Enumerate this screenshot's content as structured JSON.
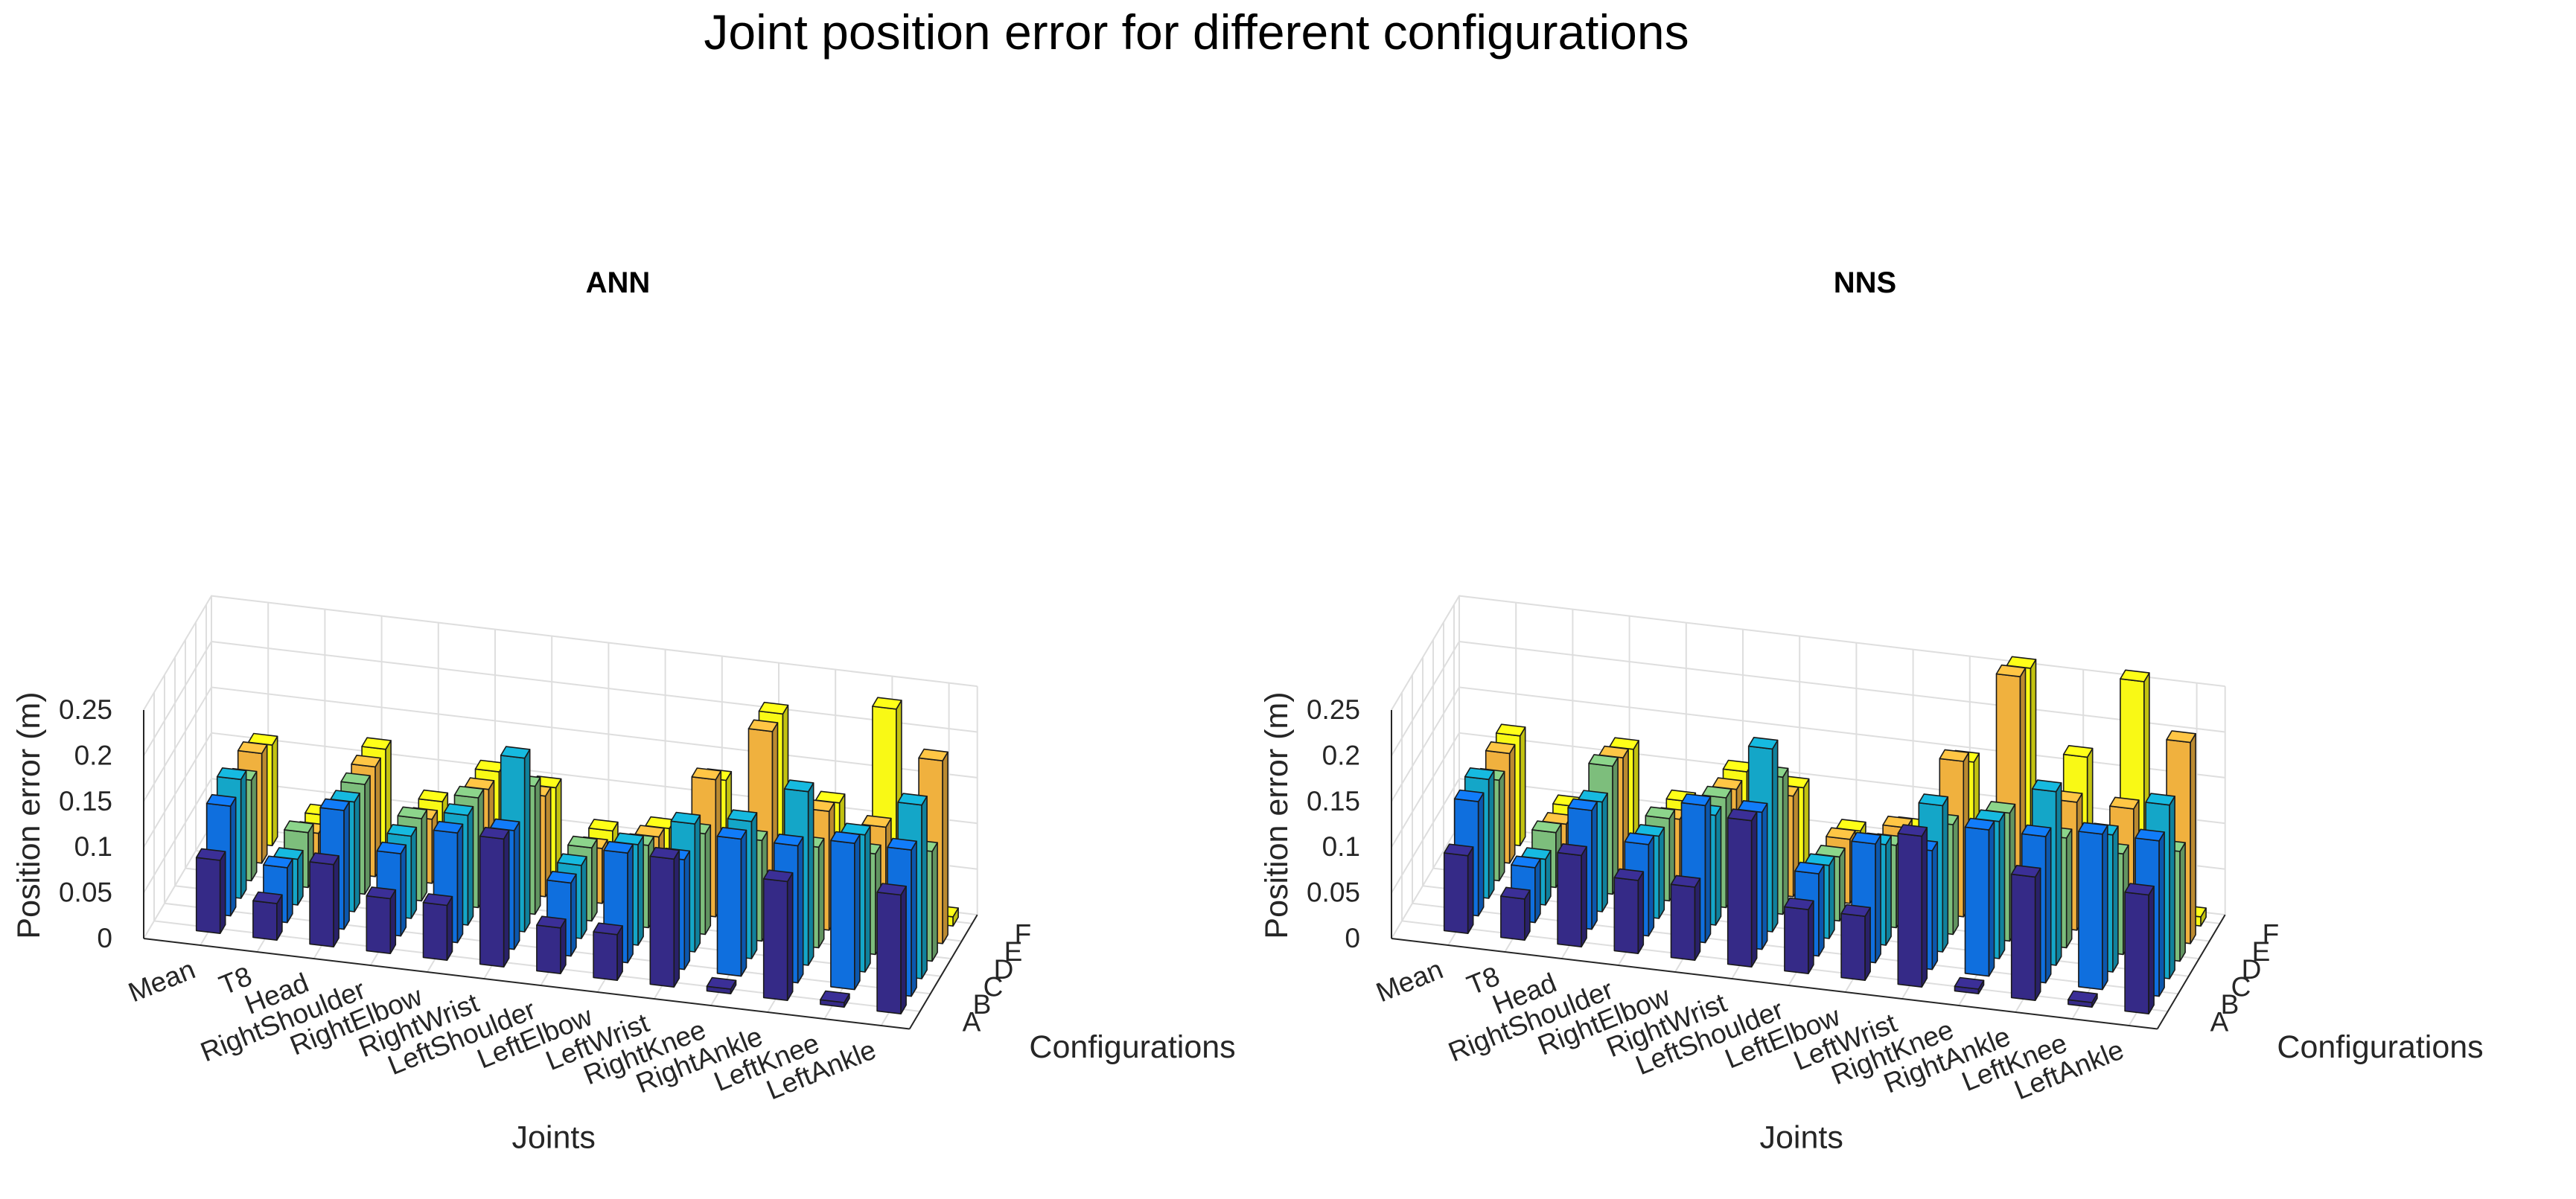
{
  "title": "Joint position error for different configurations",
  "chart_data": [
    {
      "type": "bar3",
      "title": "ANN",
      "xlabel": "Joints",
      "ylabel": "Configurations",
      "zlabel": "Position error (m)",
      "zlim": [
        0,
        0.25
      ],
      "zticks": [
        "0",
        "0.05",
        "0.1",
        "0.15",
        "0.2",
        "0.25"
      ],
      "categories": [
        "Mean",
        "T8",
        "Head",
        "RightShoulder",
        "RightElbow",
        "RightWrist",
        "LeftShoulder",
        "LeftElbow",
        "LeftWrist",
        "RightKnee",
        "RightAnkle",
        "LeftKnee",
        "LeftAnkle"
      ],
      "series": [
        {
          "name": "A",
          "color": "#352a87",
          "values": [
            0.08,
            0.04,
            0.09,
            0.06,
            0.06,
            0.14,
            0.05,
            0.05,
            0.14,
            0.005,
            0.13,
            0.005,
            0.13
          ]
        },
        {
          "name": "B",
          "color": "#0f6fde",
          "values": [
            0.12,
            0.06,
            0.13,
            0.09,
            0.12,
            0.13,
            0.08,
            0.12,
            0.12,
            0.15,
            0.15,
            0.16,
            0.16
          ]
        },
        {
          "name": "C",
          "color": "#14a6c8",
          "values": [
            0.13,
            0.05,
            0.12,
            0.09,
            0.12,
            0.19,
            0.08,
            0.11,
            0.14,
            0.15,
            0.19,
            0.15,
            0.19
          ]
        },
        {
          "name": "D",
          "color": "#7dbe7c",
          "values": [
            0.11,
            0.06,
            0.12,
            0.09,
            0.12,
            0.14,
            0.08,
            0.09,
            0.11,
            0.11,
            0.11,
            0.11,
            0.12
          ]
        },
        {
          "name": "E",
          "color": "#f0b13e",
          "values": [
            0.12,
            0.04,
            0.12,
            0.07,
            0.11,
            0.11,
            0.06,
            0.08,
            0.15,
            0.21,
            0.13,
            0.12,
            0.2
          ]
        },
        {
          "name": "F",
          "color": "#f9f915",
          "values": [
            0.11,
            0.04,
            0.12,
            0.07,
            0.11,
            0.1,
            0.06,
            0.07,
            0.13,
            0.21,
            0.12,
            0.23,
            0.01
          ]
        }
      ]
    },
    {
      "type": "bar3",
      "title": "NNS",
      "xlabel": "Joints",
      "ylabel": "Configurations",
      "zlabel": "Position error (m)",
      "zlim": [
        0,
        0.25
      ],
      "zticks": [
        "0",
        "0.05",
        "0.1",
        "0.15",
        "0.2",
        "0.25"
      ],
      "categories": [
        "Mean",
        "T8",
        "Head",
        "RightShoulder",
        "RightElbow",
        "RightWrist",
        "LeftShoulder",
        "LeftElbow",
        "LeftWrist",
        "RightKnee",
        "RightAnkle",
        "LeftKnee",
        "LeftAnkle"
      ],
      "series": [
        {
          "name": "A",
          "color": "#352a87",
          "values": [
            0.085,
            0.045,
            0.1,
            0.08,
            0.08,
            0.16,
            0.07,
            0.07,
            0.165,
            0.005,
            0.135,
            0.005,
            0.13
          ]
        },
        {
          "name": "B",
          "color": "#0f6fde",
          "values": [
            0.125,
            0.06,
            0.13,
            0.1,
            0.15,
            0.15,
            0.09,
            0.13,
            0.13,
            0.16,
            0.16,
            0.17,
            0.17
          ]
        },
        {
          "name": "C",
          "color": "#14a6c8",
          "values": [
            0.13,
            0.05,
            0.12,
            0.09,
            0.12,
            0.2,
            0.08,
            0.11,
            0.16,
            0.15,
            0.19,
            0.15,
            0.19
          ]
        },
        {
          "name": "D",
          "color": "#7dbe7c",
          "values": [
            0.11,
            0.06,
            0.14,
            0.09,
            0.12,
            0.15,
            0.07,
            0.09,
            0.12,
            0.14,
            0.12,
            0.11,
            0.12
          ]
        },
        {
          "name": "E",
          "color": "#f0b13e",
          "values": [
            0.12,
            0.05,
            0.13,
            0.07,
            0.11,
            0.11,
            0.07,
            0.09,
            0.17,
            0.27,
            0.14,
            0.14,
            0.22
          ]
        },
        {
          "name": "F",
          "color": "#f9f915",
          "values": [
            0.12,
            0.05,
            0.12,
            0.07,
            0.11,
            0.1,
            0.06,
            0.07,
            0.15,
            0.26,
            0.17,
            0.26,
            0.01
          ]
        }
      ]
    }
  ]
}
